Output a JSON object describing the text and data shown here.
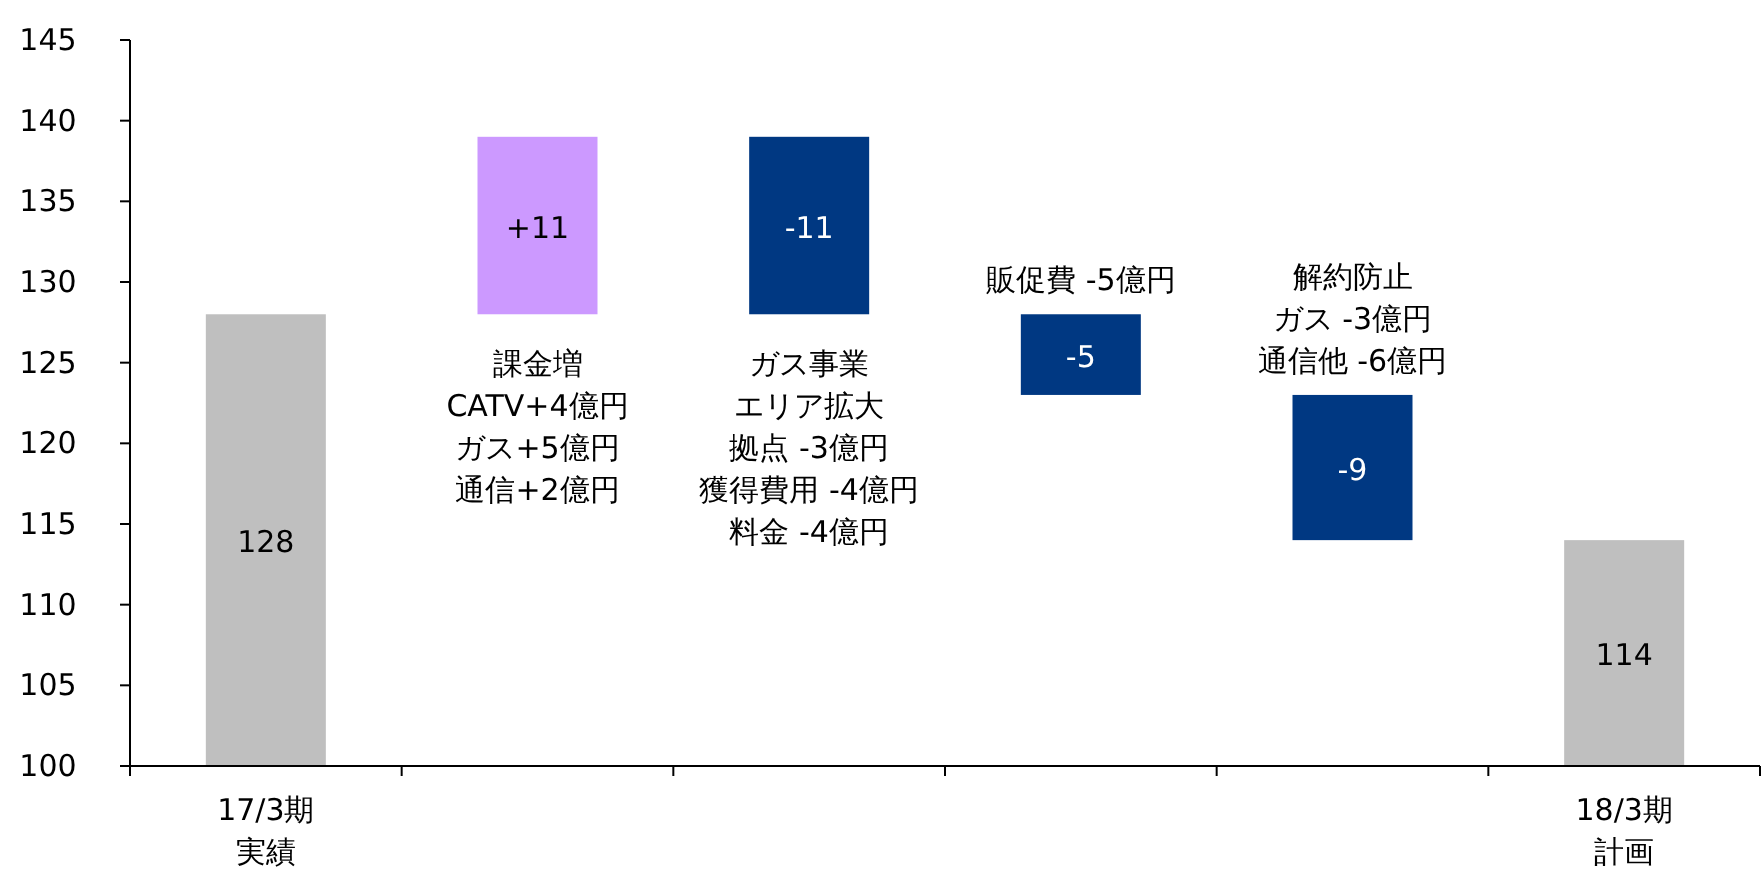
{
  "chart_data": {
    "type": "bar",
    "categories": [
      "17/3期実績",
      null,
      null,
      null,
      null,
      "18/3期計画"
    ],
    "values": [
      128,
      11,
      -11,
      -5,
      -9,
      114
    ],
    "base": [
      null,
      128,
      139,
      128,
      123,
      null
    ],
    "colors": [
      "#bfbfbf",
      "#cc99ff",
      "#003882",
      "#003882",
      "#003882",
      "#bfbfbf"
    ],
    "value_labels": [
      "128",
      "+11",
      "-11",
      "-5",
      "-9",
      "114"
    ],
    "ylim": [
      100,
      145
    ],
    "yticks": [
      100,
      105,
      110,
      115,
      120,
      125,
      130,
      135,
      140,
      145
    ],
    "grid": false,
    "annotations": [
      "課金増",
      "CATV+4億円",
      "ガス+5億円",
      "通信+2億円",
      "ガス事業",
      "エリア拡大",
      "拠点 -3億円",
      "獲得費用 -4億円",
      "料金 -4億円",
      "販促費 -5億円",
      "解約防止",
      "ガス -3億円",
      "通信他 -6億円"
    ]
  }
}
